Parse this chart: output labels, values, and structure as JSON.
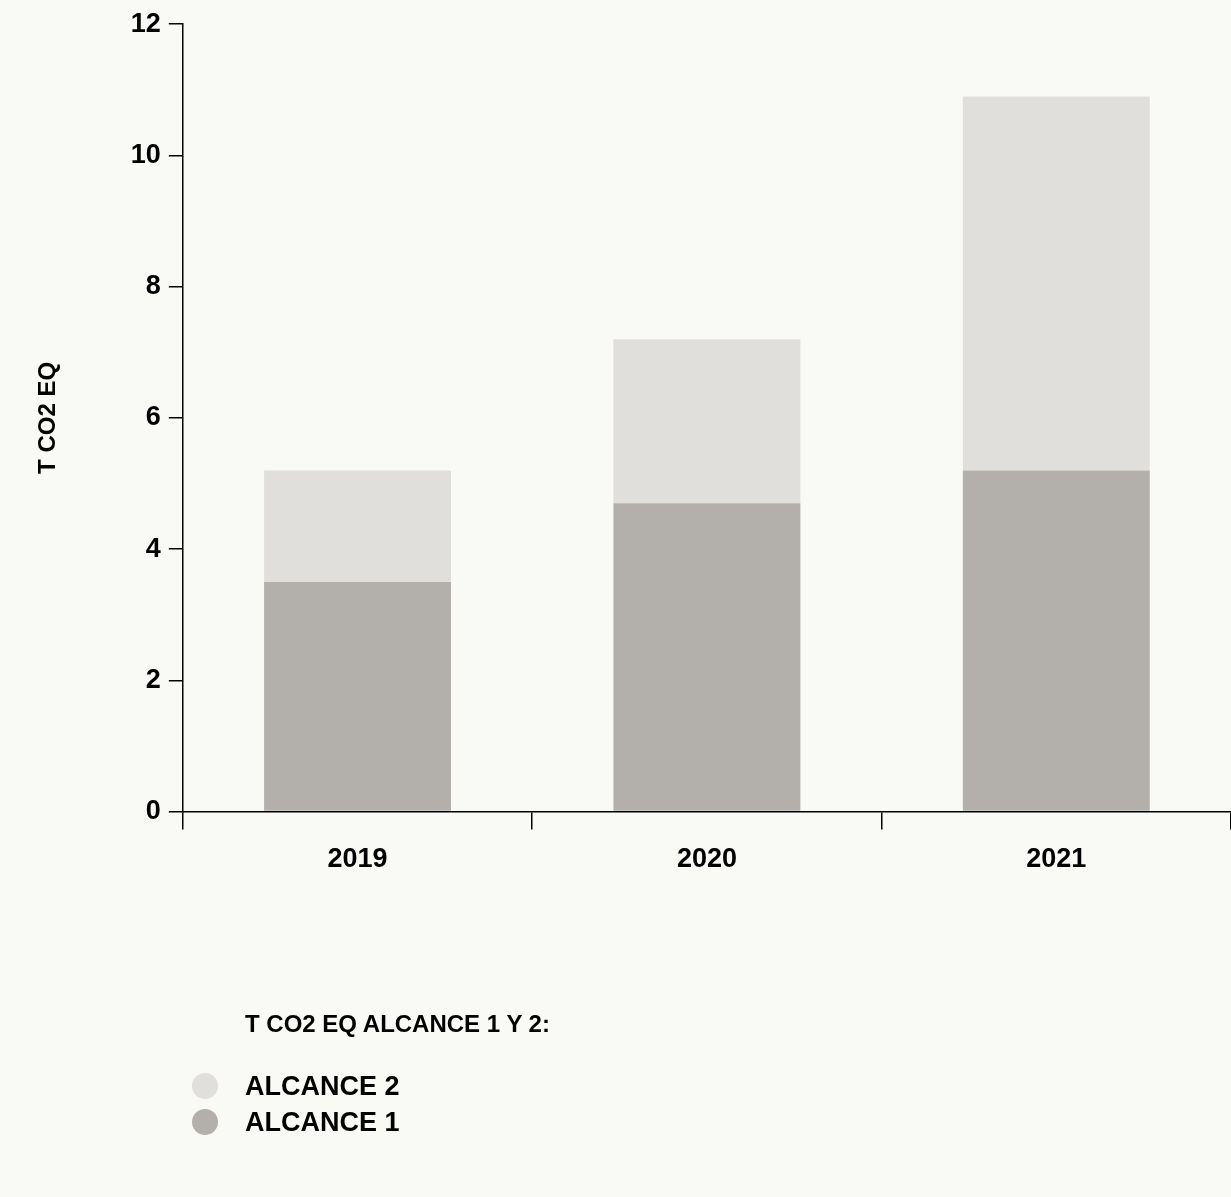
{
  "chart_data": {
    "type": "bar",
    "stacked": true,
    "ylabel": "T CO2 EQ",
    "legend_title": "T CO2 EQ ALCANCE 1 Y 2:",
    "legend": "bottom",
    "grid": false,
    "categories": [
      "2019",
      "2020",
      "2021"
    ],
    "ylim": [
      0,
      12
    ],
    "yticks": [
      0,
      2,
      4,
      6,
      8,
      10,
      12
    ],
    "series": [
      {
        "name": "ALCANCE 1",
        "color": "#b3b0ac",
        "values": [
          3.5,
          4.7,
          5.2
        ]
      },
      {
        "name": "ALCANCE 2",
        "color": "#e0dfdc",
        "values": [
          1.7,
          2.5,
          5.7
        ]
      }
    ]
  }
}
